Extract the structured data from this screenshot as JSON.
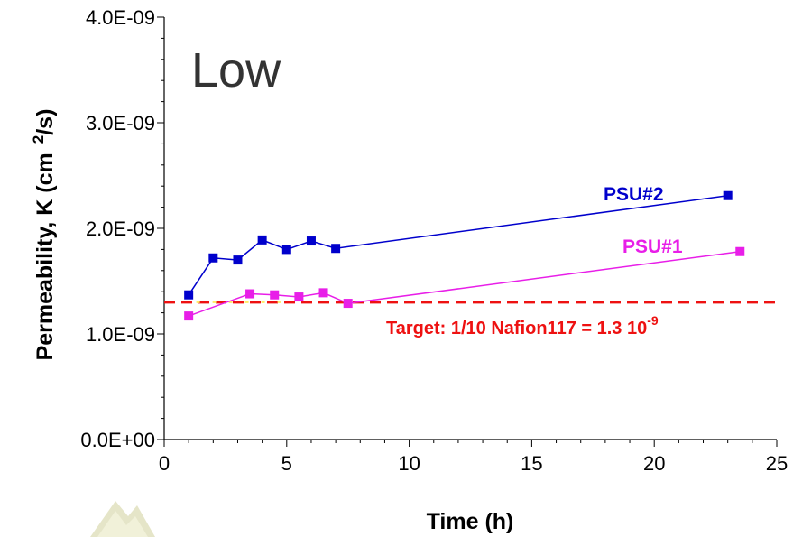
{
  "chart_data": {
    "type": "line",
    "title": "Low",
    "xlabel": "Time (h)",
    "ylabel": {
      "main": "Permeability, K (cm",
      "sup": "2",
      "end": "/s)"
    },
    "xlim": [
      0,
      25
    ],
    "ylim": [
      0,
      4e-09
    ],
    "x_ticks": [
      0,
      5,
      10,
      15,
      20,
      25
    ],
    "x_tick_labels": [
      "0",
      "5",
      "10",
      "15",
      "20",
      "25"
    ],
    "y_ticks": [
      0,
      1e-09,
      2e-09,
      3e-09,
      4e-09
    ],
    "y_tick_labels": [
      "0.0E+00",
      "1.0E-09",
      "2.0E-09",
      "3.0E-09",
      "4.0E-09"
    ],
    "grid": false,
    "legend": "none",
    "series": [
      {
        "name": "PSU#2",
        "color": "#0000cc",
        "marker": "square",
        "x": [
          1,
          2,
          3,
          4,
          5,
          6,
          7,
          23
        ],
        "y": [
          1.37e-09,
          1.72e-09,
          1.7e-09,
          1.89e-09,
          1.8e-09,
          1.88e-09,
          1.81e-09,
          2.31e-09
        ]
      },
      {
        "name": "PSU#1",
        "color": "#e81ee8",
        "marker": "square",
        "x": [
          1,
          3.5,
          4.5,
          5.5,
          6.5,
          7.5,
          23.5
        ],
        "y": [
          1.17e-09,
          1.38e-09,
          1.37e-09,
          1.35e-09,
          1.39e-09,
          1.29e-09,
          1.78e-09
        ]
      }
    ],
    "reference_line": {
      "y": 1.3e-09,
      "color": "#ee1111",
      "style": "dashed",
      "label_main": "Target: 1/10 Nafion117 = 1.3 10",
      "label_sup": "-9"
    }
  }
}
